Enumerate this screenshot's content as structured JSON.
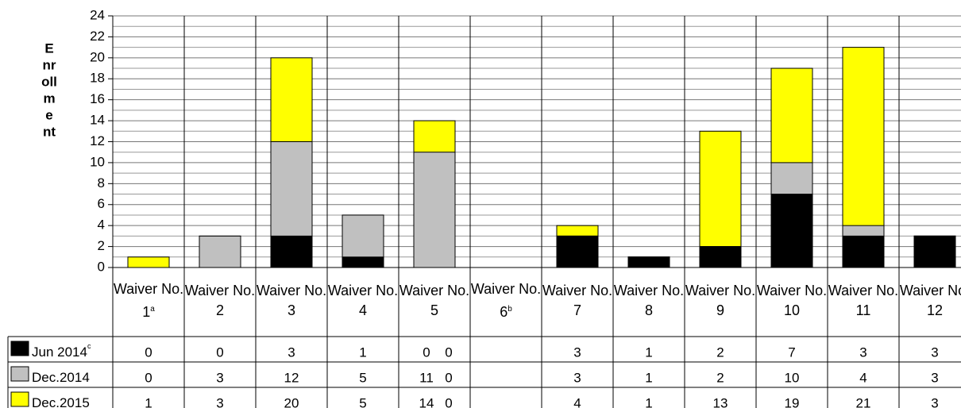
{
  "chart_data": {
    "type": "bar",
    "y_label_lines": [
      "E",
      "nr",
      "oll",
      "m",
      "e",
      "nt"
    ],
    "categories": [
      "Waiver No. 1",
      "Waiver No. 2",
      "Waiver No. 3",
      "Waiver No. 4",
      "Waiver No. 5",
      "Waiver No. 6",
      "Waiver No. 7",
      "Waiver No. 8",
      "Waiver No. 9",
      "Waiver No. 10",
      "Waiver No. 11",
      "Waiver No. 12"
    ],
    "category_notes": [
      "a",
      null,
      null,
      null,
      null,
      "b",
      null,
      null,
      null,
      null,
      null,
      null
    ],
    "series": [
      {
        "name": "Jun 2014",
        "name_note": "c",
        "color": "#000000",
        "values": [
          0,
          0,
          3,
          1,
          0,
          0,
          3,
          1,
          2,
          7,
          3,
          3
        ]
      },
      {
        "name": "Dec.2014",
        "color": "#c0c0c0",
        "values": [
          0,
          3,
          12,
          5,
          11,
          0,
          3,
          1,
          2,
          10,
          4,
          3
        ]
      },
      {
        "name": "Dec.2015",
        "color": "#ffff00",
        "values": [
          1,
          3,
          20,
          5,
          14,
          0,
          4,
          1,
          13,
          19,
          21,
          3
        ]
      }
    ],
    "ylim": [
      0,
      24
    ],
    "yticks": [
      0,
      2,
      4,
      6,
      8,
      10,
      12,
      14,
      16,
      18,
      20,
      22,
      24
    ],
    "minor_yticks": [
      1,
      3,
      5,
      7,
      9,
      11,
      13,
      15,
      17,
      19,
      21,
      23
    ],
    "grid": true
  }
}
